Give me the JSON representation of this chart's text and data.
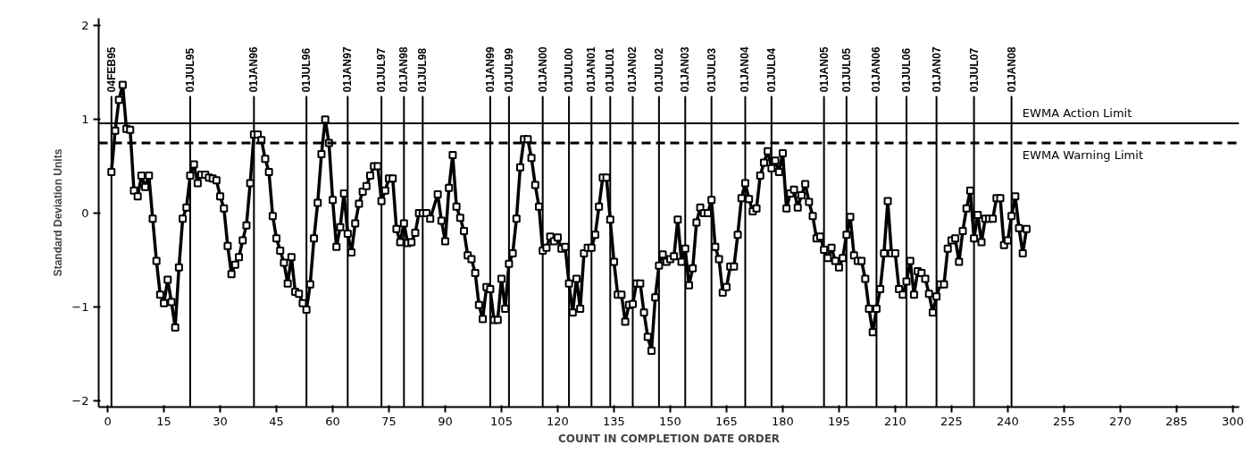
{
  "chart_data": {
    "type": "line",
    "xlabel": "COUNT IN COMPLETION DATE ORDER",
    "ylabel": "Standard Deviation Units",
    "xlim": [
      -2.4,
      301.7
    ],
    "ylim": [
      -2.07,
      2.08
    ],
    "xticks": [
      0,
      15,
      30,
      45,
      60,
      75,
      90,
      105,
      120,
      135,
      150,
      165,
      180,
      195,
      210,
      225,
      240,
      255,
      270,
      285,
      300
    ],
    "yticks": [
      -2,
      -1,
      0,
      1,
      2
    ],
    "grid": false,
    "marker": "square",
    "line_style": "solid",
    "series": [
      {
        "color": "#000000",
        "x": [
          1,
          2,
          3,
          4,
          5,
          6,
          7,
          8,
          9,
          10,
          11,
          12,
          13,
          14,
          15,
          16,
          17,
          18,
          19,
          20,
          21,
          22,
          23,
          24,
          25,
          26,
          27,
          28,
          29,
          30,
          31,
          32,
          33,
          34,
          35,
          36,
          37,
          38,
          39,
          40,
          41,
          42,
          43,
          44,
          45,
          46,
          47,
          48,
          49,
          50,
          51,
          52,
          53,
          54,
          55,
          56,
          57,
          58,
          59,
          60,
          61,
          62,
          63,
          64,
          65,
          66,
          67,
          68,
          69,
          70,
          71,
          72,
          73,
          74,
          75,
          76,
          77,
          78,
          79,
          80,
          81,
          82,
          83,
          84,
          85,
          86,
          88,
          89,
          90,
          91,
          92,
          93,
          94,
          95,
          96,
          97,
          98,
          99,
          100,
          101,
          102,
          103,
          104,
          105,
          106,
          107,
          108,
          109,
          110,
          111,
          112,
          113,
          114,
          115,
          116,
          117,
          118,
          119,
          120,
          121,
          122,
          123,
          124,
          125,
          126,
          127,
          128,
          129,
          130,
          131,
          132,
          133,
          134,
          135,
          136,
          137,
          138,
          139,
          140,
          141,
          142,
          143,
          144,
          145,
          146,
          147,
          148,
          149,
          150,
          151,
          152,
          153,
          154,
          155,
          156,
          157,
          158,
          159,
          160,
          161,
          162,
          163,
          164,
          165,
          166,
          167,
          168,
          169,
          170,
          171,
          172,
          173,
          174,
          175,
          176,
          177,
          178,
          179,
          180,
          181,
          182,
          183,
          184,
          185,
          186,
          187,
          188,
          189,
          190,
          191,
          192,
          193,
          194,
          195,
          196,
          197,
          198,
          199,
          200,
          201,
          202,
          203,
          204,
          205,
          206,
          207,
          208,
          209,
          210,
          211,
          212,
          213,
          214,
          215,
          216,
          217,
          218,
          219,
          220,
          221,
          222,
          223,
          224,
          225,
          226,
          227,
          228,
          229,
          230,
          231,
          232,
          233,
          234,
          235,
          236,
          237,
          238,
          239,
          240,
          241,
          242,
          243,
          244,
          245
        ],
        "values": [
          0.44,
          0.88,
          1.21,
          1.37,
          0.9,
          0.89,
          0.24,
          0.18,
          0.4,
          0.28,
          0.4,
          -0.06,
          -0.51,
          -0.87,
          -0.96,
          -0.71,
          -0.95,
          -1.22,
          -0.58,
          -0.06,
          0.06,
          0.4,
          0.52,
          0.32,
          0.41,
          0.41,
          0.38,
          0.37,
          0.35,
          0.18,
          0.05,
          -0.35,
          -0.65,
          -0.55,
          -0.47,
          -0.29,
          -0.13,
          0.32,
          0.84,
          0.84,
          0.78,
          0.58,
          0.44,
          -0.03,
          -0.27,
          -0.4,
          -0.53,
          -0.75,
          -0.47,
          -0.84,
          -0.86,
          -0.96,
          -1.03,
          -0.76,
          -0.27,
          0.11,
          0.63,
          1.0,
          0.75,
          0.14,
          -0.36,
          -0.15,
          0.21,
          -0.22,
          -0.42,
          -0.11,
          0.1,
          0.23,
          0.29,
          0.4,
          0.5,
          0.5,
          0.13,
          0.24,
          0.37,
          0.37,
          -0.17,
          -0.31,
          -0.11,
          -0.32,
          -0.31,
          -0.21,
          0.0,
          0.0,
          0.0,
          -0.06,
          0.2,
          -0.08,
          -0.3,
          0.27,
          0.62,
          0.07,
          -0.05,
          -0.19,
          -0.45,
          -0.49,
          -0.64,
          -0.98,
          -1.13,
          -0.79,
          -0.81,
          -1.14,
          -1.14,
          -0.7,
          -1.02,
          -0.54,
          -0.43,
          -0.06,
          0.49,
          0.79,
          0.79,
          0.59,
          0.3,
          0.07,
          -0.4,
          -0.37,
          -0.25,
          -0.3,
          -0.26,
          -0.38,
          -0.36,
          -0.75,
          -1.06,
          -0.7,
          -1.02,
          -0.43,
          -0.37,
          -0.37,
          -0.23,
          0.07,
          0.38,
          0.38,
          -0.07,
          -0.52,
          -0.87,
          -0.87,
          -1.16,
          -0.98,
          -0.97,
          -0.75,
          -0.75,
          -1.06,
          -1.32,
          -1.47,
          -0.9,
          -0.56,
          -0.44,
          -0.52,
          -0.49,
          -0.46,
          -0.07,
          -0.52,
          -0.38,
          -0.77,
          -0.59,
          -0.1,
          0.06,
          0.0,
          0.0,
          0.14,
          -0.36,
          -0.49,
          -0.85,
          -0.79,
          -0.57,
          -0.57,
          -0.23,
          0.16,
          0.32,
          0.15,
          0.02,
          0.05,
          0.4,
          0.54,
          0.66,
          0.48,
          0.56,
          0.44,
          0.64,
          0.05,
          0.21,
          0.25,
          0.06,
          0.19,
          0.31,
          0.12,
          -0.03,
          -0.27,
          -0.25,
          -0.39,
          -0.48,
          -0.37,
          -0.51,
          -0.58,
          -0.48,
          -0.23,
          -0.04,
          -0.45,
          -0.51,
          -0.51,
          -0.7,
          -1.02,
          -1.27,
          -1.02,
          -0.81,
          -0.43,
          0.13,
          -0.43,
          -0.43,
          -0.81,
          -0.87,
          -0.73,
          -0.51,
          -0.87,
          -0.62,
          -0.64,
          -0.7,
          -0.86,
          -1.06,
          -0.89,
          -0.76,
          -0.76,
          -0.38,
          -0.29,
          -0.27,
          -0.52,
          -0.19,
          0.05,
          0.24,
          -0.27,
          -0.02,
          -0.31,
          -0.06,
          -0.06,
          -0.06,
          0.16,
          0.16,
          -0.34,
          -0.29,
          -0.03,
          0.18,
          -0.16,
          -0.43,
          -0.17
        ]
      }
    ],
    "ref_lines": [
      {
        "axis": "y",
        "value": 0.96,
        "label": "EWMA Action Limit",
        "line_style": "solid"
      },
      {
        "axis": "y",
        "value": 0.75,
        "label": "EWMA Warning Limit",
        "line_style": "dashed"
      },
      {
        "axis": "x",
        "value": 1,
        "label": "04FEB95"
      },
      {
        "axis": "x",
        "value": 22,
        "label": "01JUL95"
      },
      {
        "axis": "x",
        "value": 39,
        "label": "01JAN96"
      },
      {
        "axis": "x",
        "value": 53,
        "label": "01JUL96"
      },
      {
        "axis": "x",
        "value": 64,
        "label": "01JAN97"
      },
      {
        "axis": "x",
        "value": 73,
        "label": "01JUL97"
      },
      {
        "axis": "x",
        "value": 79,
        "label": "01JAN98"
      },
      {
        "axis": "x",
        "value": 84,
        "label": "01JUL98"
      },
      {
        "axis": "x",
        "value": 102,
        "label": "01JAN99"
      },
      {
        "axis": "x",
        "value": 107,
        "label": "01JUL99"
      },
      {
        "axis": "x",
        "value": 116,
        "label": "01JAN00"
      },
      {
        "axis": "x",
        "value": 123,
        "label": "01JUL00"
      },
      {
        "axis": "x",
        "value": 129,
        "label": "01JAN01"
      },
      {
        "axis": "x",
        "value": 134,
        "label": "01JUL01"
      },
      {
        "axis": "x",
        "value": 140,
        "label": "01JAN02"
      },
      {
        "axis": "x",
        "value": 147,
        "label": "01JUL02"
      },
      {
        "axis": "x",
        "value": 154,
        "label": "01JAN03"
      },
      {
        "axis": "x",
        "value": 161,
        "label": "01JUL03"
      },
      {
        "axis": "x",
        "value": 170,
        "label": "01JAN04"
      },
      {
        "axis": "x",
        "value": 177,
        "label": "01JUL04"
      },
      {
        "axis": "x",
        "value": 191,
        "label": "01JAN05"
      },
      {
        "axis": "x",
        "value": 197,
        "label": "01JUL05"
      },
      {
        "axis": "x",
        "value": 205,
        "label": "01JAN06"
      },
      {
        "axis": "x",
        "value": 213,
        "label": "01JUL06"
      },
      {
        "axis": "x",
        "value": 221,
        "label": "01JAN07"
      },
      {
        "axis": "x",
        "value": 231,
        "label": "01JUL07"
      },
      {
        "axis": "x",
        "value": 241,
        "label": "01JAN08"
      }
    ]
  }
}
